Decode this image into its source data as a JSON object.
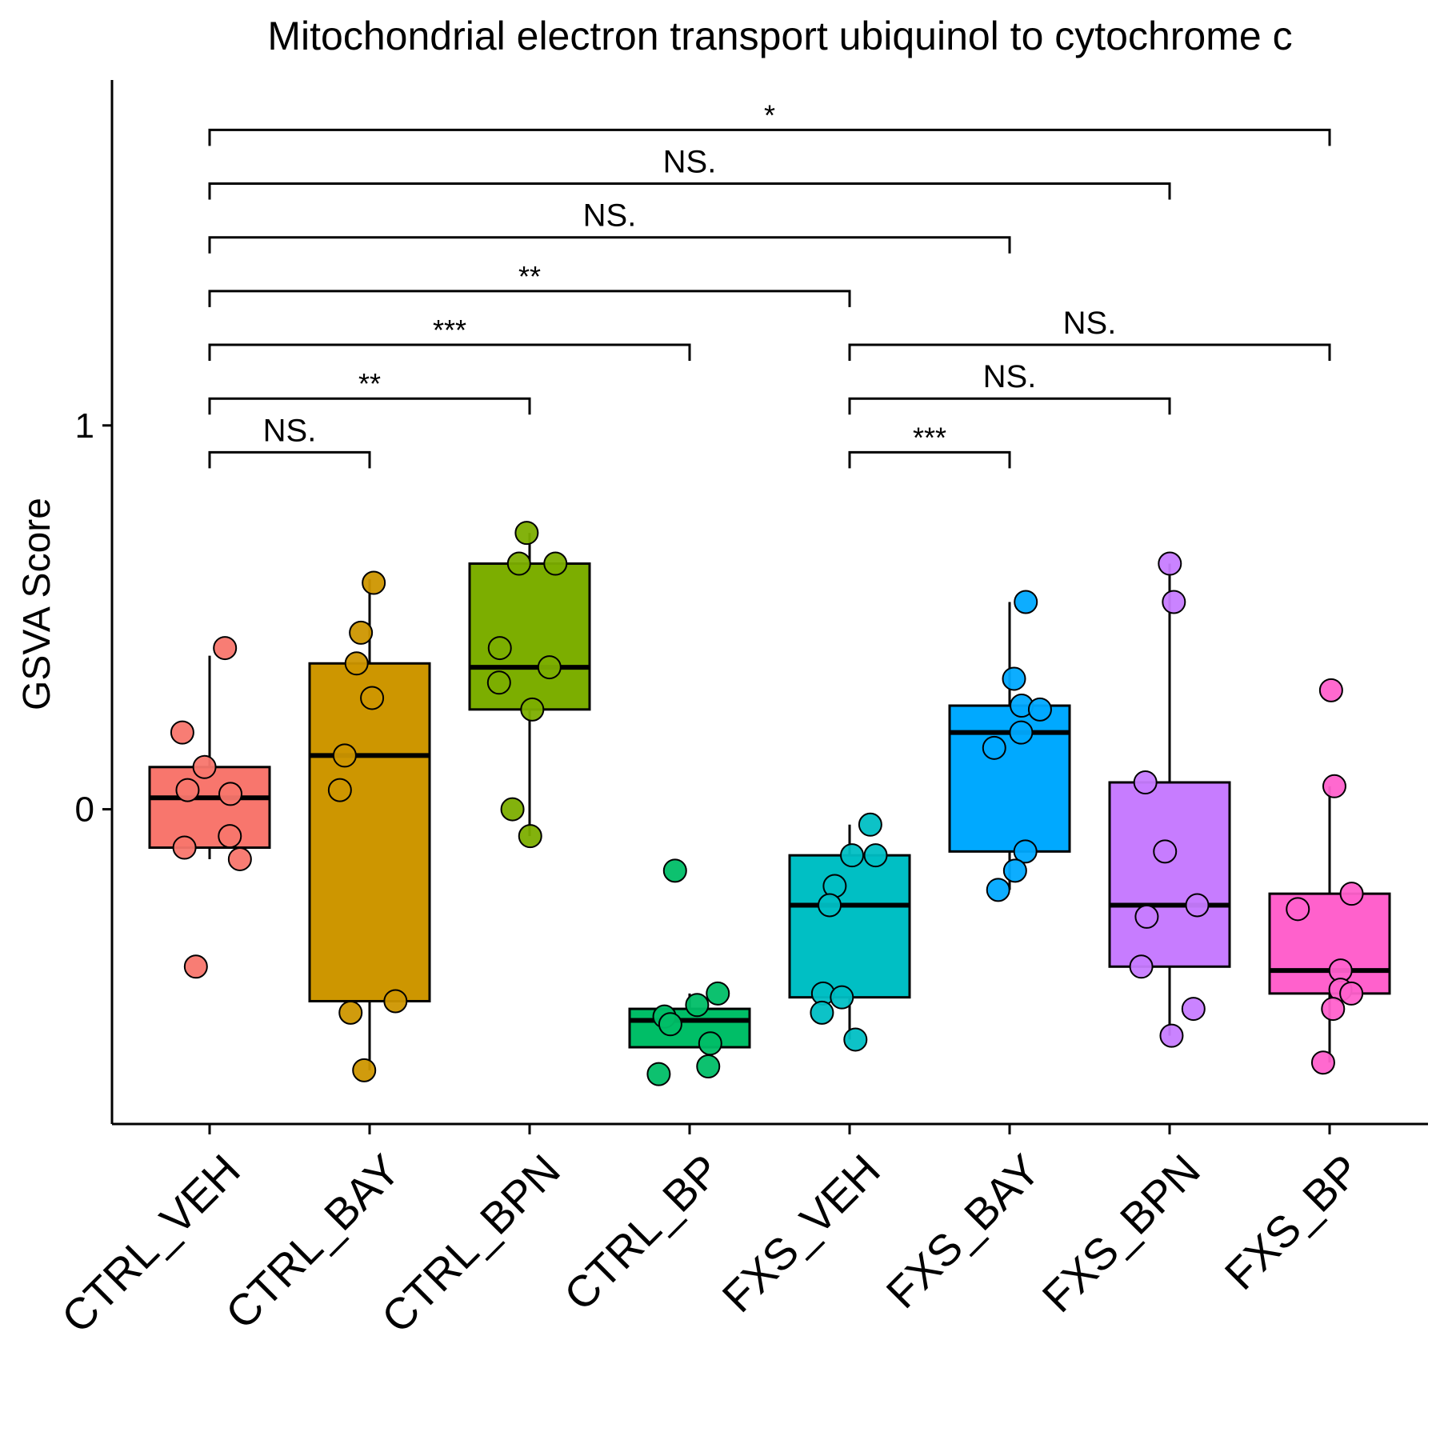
{
  "chart_data": {
    "type": "box",
    "title": "Mitochondrial electron transport ubiquinol to cytochrome c",
    "ylabel": "GSVA Score",
    "xlabel": "",
    "ylim": [
      -0.82,
      1.9
    ],
    "y_ticks": [
      0,
      1
    ],
    "grid": false,
    "legend": "none",
    "categories": [
      "CTRL_VEH",
      "CTRL_BAY",
      "CTRL_BPN",
      "CTRL_BP",
      "FXS_VEH",
      "FXS_BAY",
      "FXS_BPN",
      "FXS_BP"
    ],
    "groups": [
      {
        "name": "CTRL_VEH",
        "color": "#F8766D",
        "box": {
          "q1": -0.1,
          "median": 0.03,
          "q3": 0.11,
          "whisker_low": -0.13,
          "whisker_high": 0.4
        },
        "points": [
          0.42,
          0.2,
          0.11,
          0.04,
          0.05,
          -0.07,
          -0.1,
          -0.13,
          -0.41
        ]
      },
      {
        "name": "CTRL_BAY",
        "color": "#CD9600",
        "box": {
          "q1": -0.5,
          "median": 0.14,
          "q3": 0.38,
          "whisker_low": -0.68,
          "whisker_high": 0.6
        },
        "points": [
          0.59,
          0.46,
          0.38,
          0.29,
          0.14,
          0.05,
          -0.5,
          -0.53,
          -0.68
        ]
      },
      {
        "name": "CTRL_BPN",
        "color": "#7CAE00",
        "box": {
          "q1": 0.26,
          "median": 0.37,
          "q3": 0.64,
          "whisker_low": -0.07,
          "whisker_high": 0.72
        },
        "points": [
          0.72,
          0.64,
          0.64,
          0.42,
          0.37,
          0.33,
          0.26,
          0.0,
          -0.07
        ]
      },
      {
        "name": "CTRL_BP",
        "color": "#00BE67",
        "box": {
          "q1": -0.62,
          "median": -0.55,
          "q3": -0.52,
          "whisker_low": -0.62,
          "whisker_high": -0.48
        },
        "points": [
          -0.16,
          -0.48,
          -0.51,
          -0.54,
          -0.56,
          -0.61,
          -0.67,
          -0.69
        ]
      },
      {
        "name": "FXS_VEH",
        "color": "#00BFC4",
        "box": {
          "q1": -0.49,
          "median": -0.25,
          "q3": -0.12,
          "whisker_low": -0.6,
          "whisker_high": -0.04
        },
        "points": [
          -0.04,
          -0.12,
          -0.12,
          -0.2,
          -0.25,
          -0.48,
          -0.49,
          -0.53,
          -0.6
        ]
      },
      {
        "name": "FXS_BAY",
        "color": "#00A9FF",
        "box": {
          "q1": -0.11,
          "median": 0.2,
          "q3": 0.27,
          "whisker_low": -0.21,
          "whisker_high": 0.54
        },
        "points": [
          0.54,
          0.34,
          0.27,
          0.26,
          0.2,
          0.16,
          -0.11,
          -0.16,
          -0.21
        ]
      },
      {
        "name": "FXS_BPN",
        "color": "#C77CFF",
        "box": {
          "q1": -0.41,
          "median": -0.25,
          "q3": 0.07,
          "whisker_low": -0.59,
          "whisker_high": 0.64
        },
        "points": [
          0.64,
          0.54,
          0.07,
          -0.11,
          -0.25,
          -0.28,
          -0.41,
          -0.52,
          -0.59
        ]
      },
      {
        "name": "FXS_BP",
        "color": "#FF61CC",
        "box": {
          "q1": -0.48,
          "median": -0.42,
          "q3": -0.22,
          "whisker_low": -0.66,
          "whisker_high": 0.06
        },
        "points": [
          0.31,
          0.06,
          -0.22,
          -0.26,
          -0.42,
          -0.47,
          -0.48,
          -0.52,
          -0.66
        ]
      }
    ],
    "comparisons": [
      {
        "from": "CTRL_VEH",
        "to": "CTRL_BAY",
        "label": "NS.",
        "y": 0.93
      },
      {
        "from": "CTRL_VEH",
        "to": "CTRL_BPN",
        "label": "**",
        "y": 1.07
      },
      {
        "from": "CTRL_VEH",
        "to": "CTRL_BP",
        "label": "***",
        "y": 1.21
      },
      {
        "from": "CTRL_VEH",
        "to": "FXS_VEH",
        "label": "**",
        "y": 1.35
      },
      {
        "from": "CTRL_VEH",
        "to": "FXS_BAY",
        "label": "NS.",
        "y": 1.49
      },
      {
        "from": "CTRL_VEH",
        "to": "FXS_BPN",
        "label": "NS.",
        "y": 1.63
      },
      {
        "from": "CTRL_VEH",
        "to": "FXS_BP",
        "label": "*",
        "y": 1.77
      },
      {
        "from": "FXS_VEH",
        "to": "FXS_BAY",
        "label": "***",
        "y": 0.93
      },
      {
        "from": "FXS_VEH",
        "to": "FXS_BPN",
        "label": "NS.",
        "y": 1.07
      },
      {
        "from": "FXS_VEH",
        "to": "FXS_BP",
        "label": "NS.",
        "y": 1.21
      }
    ]
  }
}
